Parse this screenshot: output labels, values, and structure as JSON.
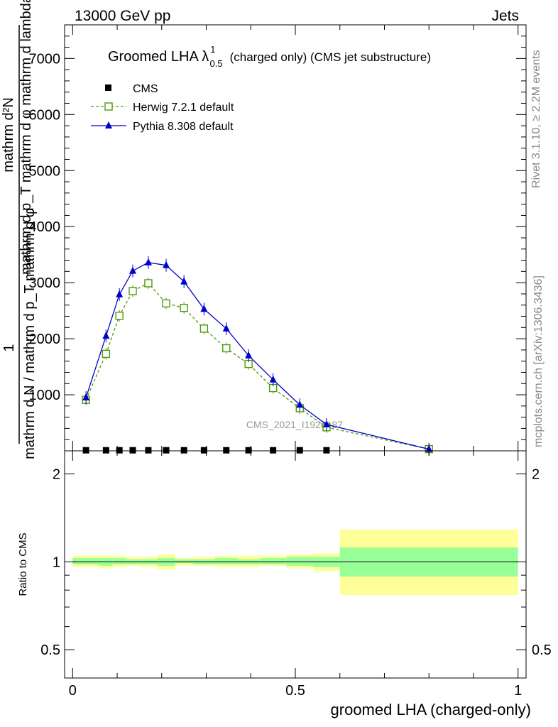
{
  "header": {
    "left": "13000 GeV pp",
    "right": "Jets"
  },
  "side_labels": {
    "rivet": "Rivet 3.1.10, ≥ 2.2M events",
    "mcplots": "mcplots.cern.ch [arXiv:1306.3436]"
  },
  "watermark": "CMS_2021_I1920187",
  "chart_data": [
    {
      "type": "line",
      "panel": "main",
      "title_main": "Groomed LHA λ",
      "title_sup": "1",
      "title_sub": "0.5",
      "title_rest": "(charged only) (CMS jet substructure)",
      "ylabel_numerator": "1",
      "ylabel_denominator": "mathrm d N / mathrm d p_T mathrm d φ",
      "ylabel_top": "mathrm d²N",
      "ylabel_top2": "mathrm d p_T mathrm d φ  mathrm d lambda",
      "xlim": [
        -0.018,
        1.018
      ],
      "ylim": [
        0,
        7600
      ],
      "y_ticks": [
        {
          "v": 1000,
          "label": "1000"
        },
        {
          "v": 2000,
          "label": "2000"
        },
        {
          "v": 3000,
          "label": "3000"
        },
        {
          "v": 4000,
          "label": "4000"
        },
        {
          "v": 5000,
          "label": "5000"
        },
        {
          "v": 6000,
          "label": "6000"
        },
        {
          "v": 7000,
          "label": "7000"
        }
      ],
      "y_minor_step": 200,
      "x_major_step": 0.5,
      "x_minor_step": 0.1,
      "legend_position": "top-left",
      "series": [
        {
          "name": "CMS",
          "style": "square-filled",
          "color": "#000000",
          "x": [
            0.03,
            0.075,
            0.105,
            0.135,
            0.17,
            0.21,
            0.25,
            0.295,
            0.345,
            0.395,
            0.45,
            0.51,
            0.57
          ],
          "y": [
            10,
            10,
            10,
            10,
            10,
            10,
            10,
            10,
            10,
            10,
            10,
            10,
            10
          ]
        },
        {
          "name": "Herwig 7.2.1 default",
          "style": "square-open-dashed",
          "color": "#4e9a06",
          "x": [
            0.03,
            0.075,
            0.105,
            0.135,
            0.17,
            0.21,
            0.25,
            0.295,
            0.345,
            0.395,
            0.45,
            0.51,
            0.57,
            0.8
          ],
          "y": [
            910,
            1730,
            2410,
            2850,
            2990,
            2630,
            2550,
            2180,
            1830,
            1550,
            1120,
            760,
            420,
            30
          ]
        },
        {
          "name": "Pythia 8.308 default",
          "style": "triangle-filled-solid",
          "color": "#0000cc",
          "x": [
            0.03,
            0.075,
            0.105,
            0.135,
            0.17,
            0.21,
            0.25,
            0.295,
            0.345,
            0.395,
            0.45,
            0.51,
            0.57,
            0.8
          ],
          "y": [
            950,
            2050,
            2790,
            3210,
            3360,
            3310,
            3020,
            2530,
            2180,
            1700,
            1270,
            820,
            470,
            30
          ]
        }
      ]
    },
    {
      "type": "area",
      "panel": "ratio",
      "ylabel": "Ratio to CMS",
      "scale": "log",
      "ylim": [
        0.4,
        2.4
      ],
      "y_ticks": [
        {
          "v": 0.5,
          "label": "0.5"
        },
        {
          "v": 1,
          "label": "1"
        },
        {
          "v": 2,
          "label": "2"
        }
      ],
      "y_ticks_right": [
        {
          "v": 0.5,
          "label": "0.5"
        },
        {
          "v": 2,
          "label": "2"
        }
      ],
      "x_ticks": [
        {
          "v": 0,
          "label": "0"
        },
        {
          "v": 0.5,
          "label": "0.5"
        },
        {
          "v": 1,
          "label": "1"
        }
      ],
      "xlabel": "groomed LHA (charged-only)",
      "inner_band_color": "#99ff99",
      "outer_band_color": "#ffff99",
      "bands": [
        {
          "x0": 0.0,
          "x1": 0.06,
          "inner": [
            0.98,
            1.03
          ],
          "outer": [
            0.96,
            1.05
          ]
        },
        {
          "x0": 0.06,
          "x1": 0.09,
          "inner": [
            0.97,
            1.03
          ],
          "outer": [
            0.95,
            1.05
          ]
        },
        {
          "x0": 0.09,
          "x1": 0.12,
          "inner": [
            0.98,
            1.03
          ],
          "outer": [
            0.96,
            1.05
          ]
        },
        {
          "x0": 0.12,
          "x1": 0.15,
          "inner": [
            0.98,
            1.02
          ],
          "outer": [
            0.97,
            1.04
          ]
        },
        {
          "x0": 0.15,
          "x1": 0.19,
          "inner": [
            0.98,
            1.02
          ],
          "outer": [
            0.96,
            1.04
          ]
        },
        {
          "x0": 0.19,
          "x1": 0.23,
          "inner": [
            0.97,
            1.03
          ],
          "outer": [
            0.94,
            1.06
          ]
        },
        {
          "x0": 0.23,
          "x1": 0.27,
          "inner": [
            0.99,
            1.02
          ],
          "outer": [
            0.97,
            1.03
          ]
        },
        {
          "x0": 0.27,
          "x1": 0.32,
          "inner": [
            0.98,
            1.02
          ],
          "outer": [
            0.97,
            1.04
          ]
        },
        {
          "x0": 0.32,
          "x1": 0.37,
          "inner": [
            0.98,
            1.03
          ],
          "outer": [
            0.96,
            1.05
          ]
        },
        {
          "x0": 0.37,
          "x1": 0.42,
          "inner": [
            0.98,
            1.02
          ],
          "outer": [
            0.96,
            1.05
          ]
        },
        {
          "x0": 0.42,
          "x1": 0.48,
          "inner": [
            0.98,
            1.03
          ],
          "outer": [
            0.97,
            1.05
          ]
        },
        {
          "x0": 0.48,
          "x1": 0.54,
          "inner": [
            0.97,
            1.04
          ],
          "outer": [
            0.95,
            1.06
          ]
        },
        {
          "x0": 0.54,
          "x1": 0.6,
          "inner": [
            0.96,
            1.04
          ],
          "outer": [
            0.93,
            1.07
          ]
        },
        {
          "x0": 0.6,
          "x1": 1.0,
          "inner": [
            0.89,
            1.12
          ],
          "outer": [
            0.77,
            1.29
          ]
        }
      ],
      "reference_line": 1
    }
  ]
}
